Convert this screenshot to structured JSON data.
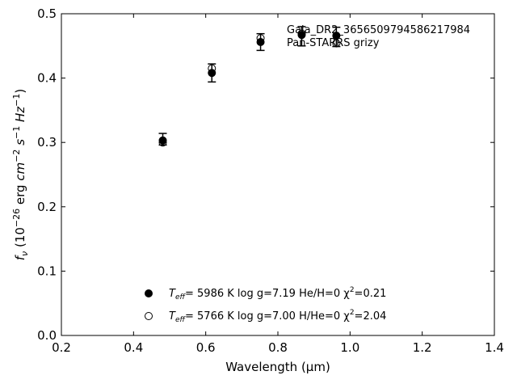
{
  "chart_data": {
    "type": "scatter",
    "xlabel": "Wavelength (μm)",
    "ylabel": "fν (10⁻²⁶ erg cm⁻² s⁻¹ Hz⁻¹)",
    "xlim": [
      0.2,
      1.4
    ],
    "ylim": [
      0.0,
      0.5
    ],
    "x_ticks": [
      "0.2",
      "0.4",
      "0.6",
      "0.8",
      "1.0",
      "1.2",
      "1.4"
    ],
    "y_ticks": [
      "0.0",
      "0.1",
      "0.2",
      "0.3",
      "0.4",
      "0.5"
    ],
    "grid": false,
    "annotations": [
      "Gaia_DR2_3656509794586217984",
      "Pan-STARRS grizy"
    ],
    "observed": {
      "x": [
        0.481,
        0.617,
        0.752,
        0.866,
        0.962
      ],
      "y": [
        0.305,
        0.408,
        0.456,
        0.465,
        0.464
      ],
      "err": [
        0.009,
        0.014,
        0.013,
        0.015,
        0.015
      ]
    },
    "series": [
      {
        "marker": "filled-circle",
        "label_parts": [
          "T",
          "eff",
          "=  5986 K  log g=7.19  He/H=0  χ",
          "2",
          "=0.21"
        ],
        "x": [
          0.481,
          0.617,
          0.752,
          0.866,
          0.962
        ],
        "y": [
          0.303,
          0.408,
          0.456,
          0.467,
          0.466
        ]
      },
      {
        "marker": "open-circle",
        "label_parts": [
          "T",
          "eff",
          "=  5766 K  log g=7.00  H/He=0  χ",
          "2",
          "=2.04"
        ],
        "x": [
          0.481,
          0.617,
          0.752,
          0.866,
          0.962
        ],
        "y": [
          0.3,
          0.415,
          0.462,
          0.469,
          0.454
        ]
      }
    ]
  }
}
